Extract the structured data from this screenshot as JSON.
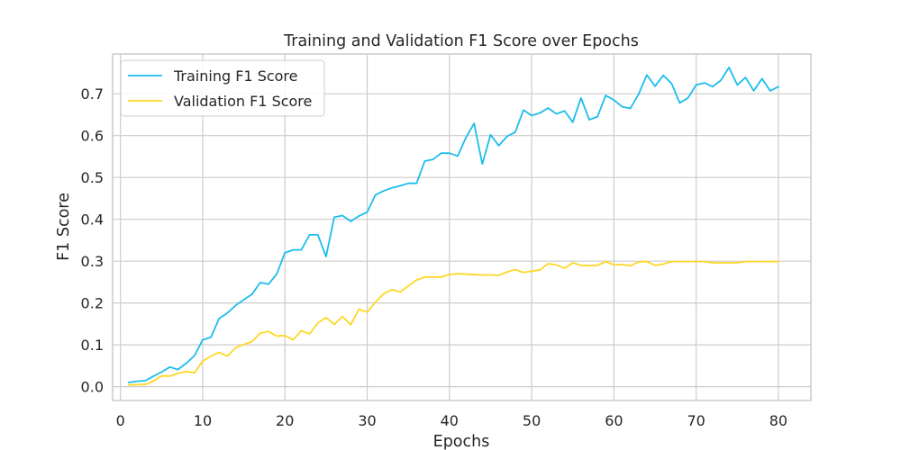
{
  "chart_data": {
    "type": "line",
    "title": "Training and Validation F1 Score over Epochs",
    "xlabel": "Epochs",
    "ylabel": "F1 Score",
    "xlim": [
      -0.95,
      83.95
    ],
    "ylim": [
      -0.033,
      0.795
    ],
    "xticks": [
      0,
      10,
      20,
      30,
      40,
      50,
      60,
      70,
      80
    ],
    "yticks": [
      0.0,
      0.1,
      0.2,
      0.3,
      0.4,
      0.5,
      0.6,
      0.7
    ],
    "ytick_labels": [
      "0.0",
      "0.1",
      "0.2",
      "0.3",
      "0.4",
      "0.5",
      "0.6",
      "0.7"
    ],
    "grid": true,
    "legend_position": "top-left",
    "x": [
      1,
      2,
      3,
      4,
      5,
      6,
      7,
      8,
      9,
      10,
      11,
      12,
      13,
      14,
      15,
      16,
      17,
      18,
      19,
      20,
      21,
      22,
      23,
      24,
      25,
      26,
      27,
      28,
      29,
      30,
      31,
      32,
      33,
      34,
      35,
      36,
      37,
      38,
      39,
      40,
      41,
      42,
      43,
      44,
      45,
      46,
      47,
      48,
      49,
      50,
      51,
      52,
      53,
      54,
      55,
      56,
      57,
      58,
      59,
      60,
      61,
      62,
      63,
      64,
      65,
      66,
      67,
      68,
      69,
      70,
      71,
      72,
      73,
      74,
      75,
      76,
      77,
      78,
      79,
      80
    ],
    "series": [
      {
        "name": "Training F1 Score",
        "color": "#1cbdec",
        "values": [
          0.01,
          0.013,
          0.014,
          0.025,
          0.035,
          0.047,
          0.041,
          0.056,
          0.074,
          0.112,
          0.118,
          0.163,
          0.176,
          0.194,
          0.208,
          0.221,
          0.249,
          0.245,
          0.269,
          0.32,
          0.327,
          0.327,
          0.363,
          0.363,
          0.311,
          0.405,
          0.409,
          0.395,
          0.408,
          0.417,
          0.458,
          0.468,
          0.475,
          0.48,
          0.486,
          0.486,
          0.539,
          0.543,
          0.558,
          0.558,
          0.551,
          0.595,
          0.629,
          0.532,
          0.602,
          0.576,
          0.598,
          0.608,
          0.661,
          0.648,
          0.654,
          0.666,
          0.652,
          0.659,
          0.632,
          0.69,
          0.638,
          0.645,
          0.696,
          0.685,
          0.669,
          0.665,
          0.699,
          0.745,
          0.718,
          0.744,
          0.725,
          0.678,
          0.69,
          0.721,
          0.726,
          0.717,
          0.732,
          0.763,
          0.721,
          0.739,
          0.707,
          0.736,
          0.707,
          0.717
        ]
      },
      {
        "name": "Validation F1 Score",
        "color": "#ffd724",
        "values": [
          0.004,
          0.005,
          0.005,
          0.013,
          0.026,
          0.025,
          0.032,
          0.036,
          0.033,
          0.061,
          0.073,
          0.082,
          0.073,
          0.093,
          0.101,
          0.108,
          0.128,
          0.132,
          0.121,
          0.122,
          0.112,
          0.134,
          0.126,
          0.152,
          0.165,
          0.149,
          0.168,
          0.148,
          0.185,
          0.178,
          0.202,
          0.222,
          0.232,
          0.226,
          0.241,
          0.255,
          0.262,
          0.262,
          0.262,
          0.268,
          0.27,
          0.269,
          0.268,
          0.267,
          0.267,
          0.266,
          0.274,
          0.28,
          0.273,
          0.276,
          0.279,
          0.294,
          0.291,
          0.283,
          0.296,
          0.29,
          0.289,
          0.29,
          0.299,
          0.291,
          0.292,
          0.289,
          0.298,
          0.299,
          0.29,
          0.293,
          0.299,
          0.299,
          0.299,
          0.299,
          0.299,
          0.296,
          0.296,
          0.296,
          0.296,
          0.299,
          0.299,
          0.299,
          0.299,
          0.299
        ]
      }
    ]
  }
}
